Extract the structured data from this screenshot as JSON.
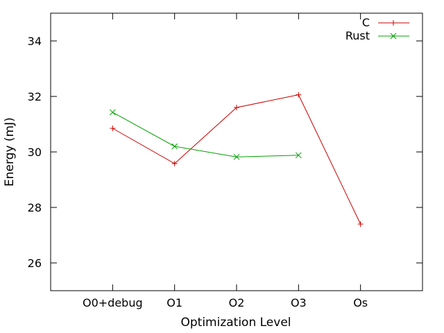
{
  "chart_data": {
    "type": "line",
    "title": "",
    "xlabel": "Optimization Level",
    "ylabel": "Energy (mJ)",
    "categories": [
      "O0+debug",
      "O1",
      "O2",
      "O3",
      "Os"
    ],
    "ylim": [
      25,
      35
    ],
    "yticks": [
      26,
      28,
      30,
      32,
      34
    ],
    "grid": false,
    "legend_position": "top-right",
    "series": [
      {
        "name": "C",
        "color": "#cc0000",
        "marker": "plus",
        "values": [
          30.85,
          29.58,
          31.6,
          32.06,
          27.4
        ]
      },
      {
        "name": "Rust",
        "color": "#00a000",
        "marker": "cross",
        "values": [
          31.43,
          30.2,
          29.82,
          29.88,
          null
        ]
      }
    ]
  }
}
